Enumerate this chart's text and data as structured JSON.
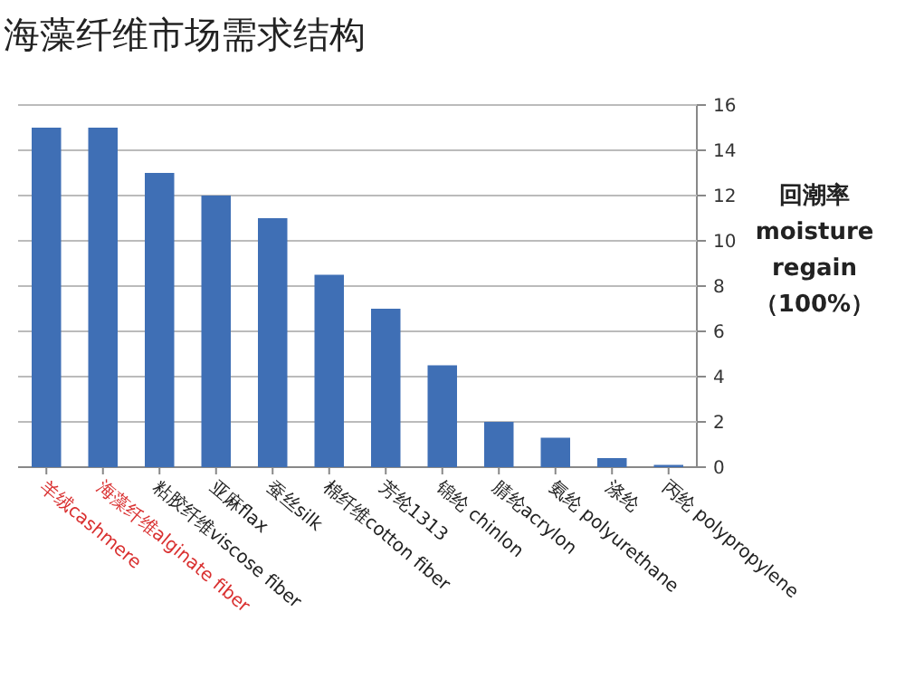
{
  "chart_data": {
    "type": "bar",
    "title": "海藻纤维市场需求结构",
    "ylabel": "回潮率 moisture regain （100%）",
    "categories": [
      "羊绒cashmere",
      "海藻纤维alginate fiber",
      "粘胶纤维viscose fiber",
      "亚麻flax",
      "蚕丝silk",
      "棉纤维cotton fiber",
      "芳纶1313",
      "锦纶 chinlon",
      "腈纶acrylon",
      "氨纶 polyurethane",
      "涤纶",
      "丙纶 polypropylene"
    ],
    "values": [
      15,
      15,
      13,
      12,
      11,
      8.5,
      7,
      4.5,
      2,
      1.3,
      0.4,
      0.1
    ],
    "color": "#3f6fb5",
    "ylim": [
      0,
      16
    ],
    "yticks": [
      0,
      2,
      4,
      6,
      8,
      10,
      12,
      14,
      16
    ],
    "grid": "y"
  }
}
